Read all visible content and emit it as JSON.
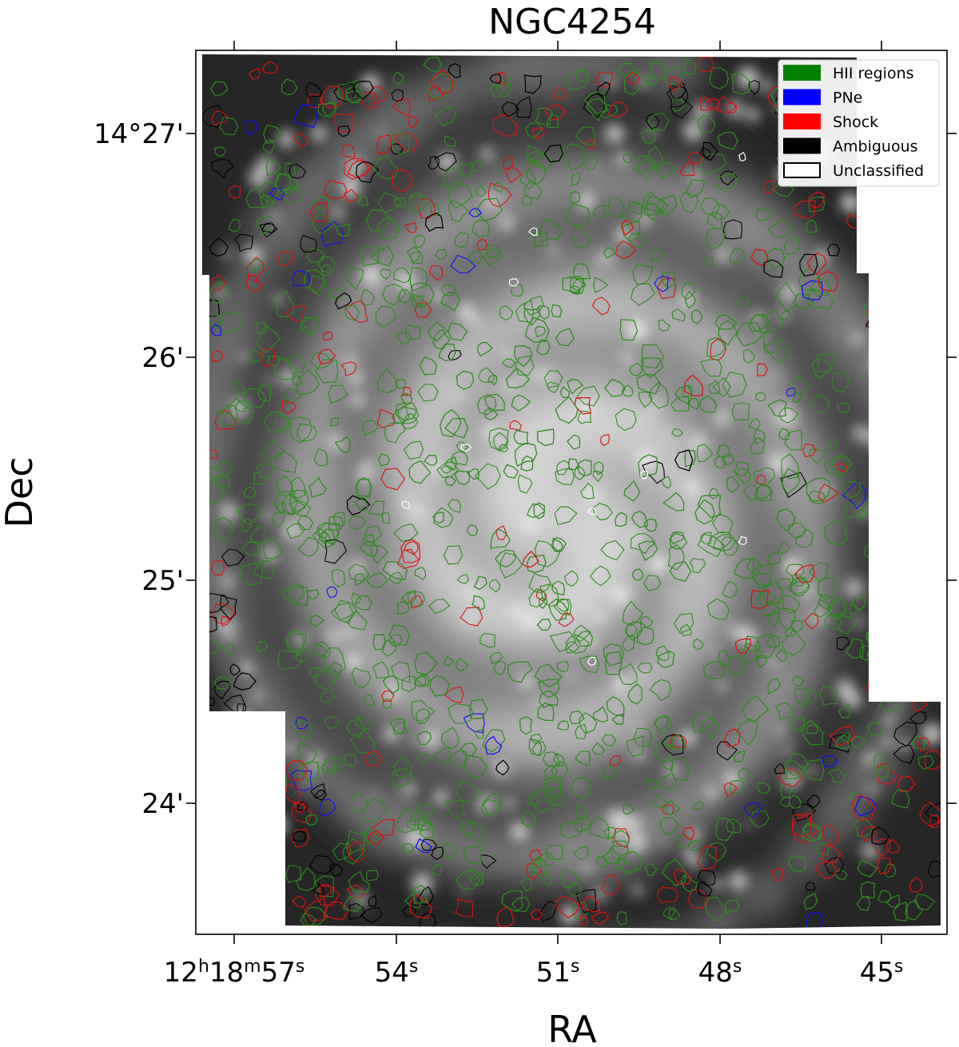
{
  "chart_data": {
    "type": "scatter",
    "title": "NGC4254",
    "xlabel": "RA",
    "ylabel": "Dec",
    "x_ticks": [
      {
        "label": "12h18m57s",
        "parts": [
          {
            "t": "12"
          },
          {
            "t": "h",
            "sup": true
          },
          {
            "t": "18"
          },
          {
            "t": "m",
            "sup": true
          },
          {
            "t": "57"
          },
          {
            "t": "s",
            "sup": true
          }
        ]
      },
      {
        "label": "54s",
        "parts": [
          {
            "t": "54"
          },
          {
            "t": "s",
            "sup": true
          }
        ]
      },
      {
        "label": "51s",
        "parts": [
          {
            "t": "51"
          },
          {
            "t": "s",
            "sup": true
          }
        ]
      },
      {
        "label": "48s",
        "parts": [
          {
            "t": "48"
          },
          {
            "t": "s",
            "sup": true
          }
        ]
      },
      {
        "label": "45s",
        "parts": [
          {
            "t": "45"
          },
          {
            "t": "s",
            "sup": true
          }
        ]
      }
    ],
    "y_ticks": [
      "14°27'",
      "26'",
      "25'",
      "24'"
    ],
    "legend_position": "top-right",
    "legend": [
      {
        "label": "HII regions",
        "color": "#008000"
      },
      {
        "label": "PNe",
        "color": "#0000ff"
      },
      {
        "label": "Shock",
        "color": "#ff0000"
      },
      {
        "label": "Ambiguous",
        "color": "#000000"
      },
      {
        "label": "Unclassified",
        "color": "#ffffff"
      }
    ],
    "background": "grayscale H-alpha image of spiral galaxy",
    "grid": false
  }
}
